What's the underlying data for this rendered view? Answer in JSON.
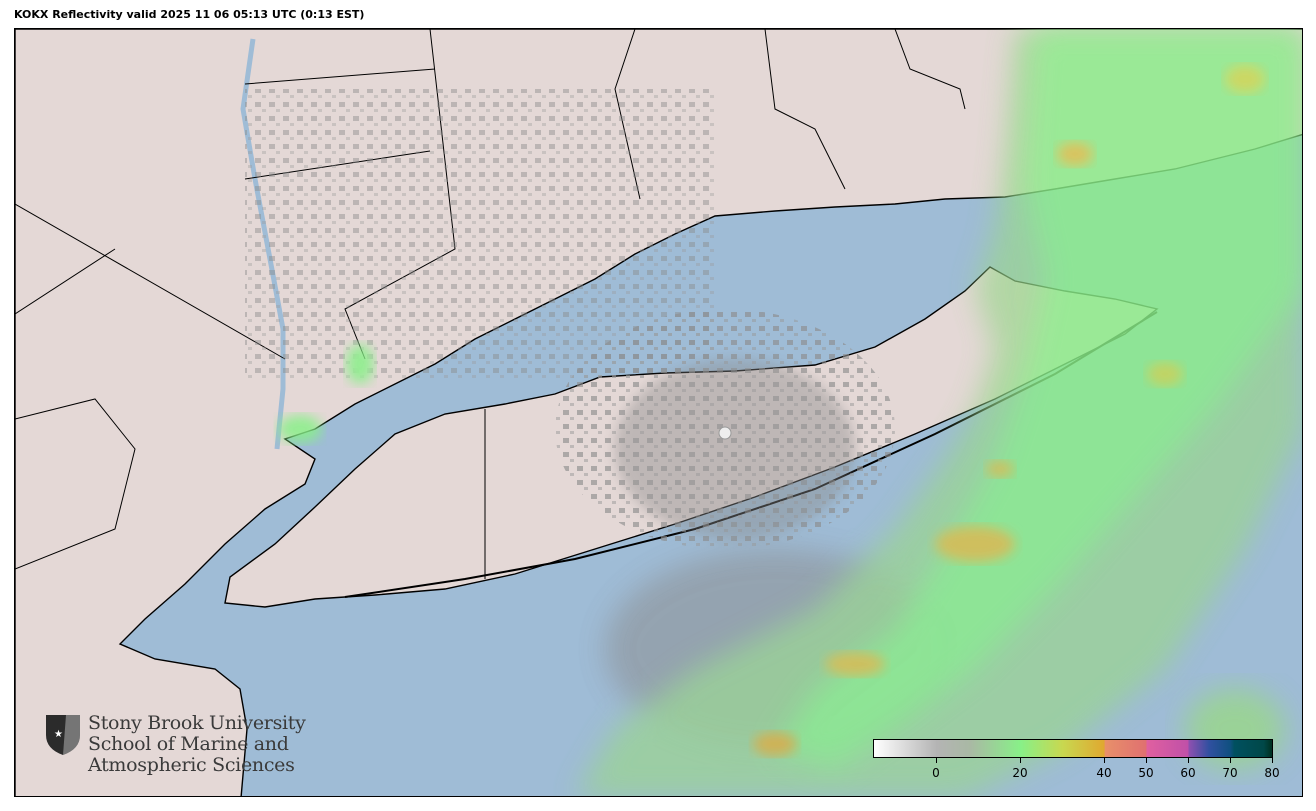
{
  "title": "KOKX Reflectivity valid 2025 11 06 05:13 UTC (0:13 EST)",
  "logo": {
    "line1": "Stony Brook University",
    "line2": "School of Marine and",
    "line3": "Atmospheric Sciences"
  },
  "colorbar": {
    "min": -15,
    "max": 80,
    "units_hint": "dBZ",
    "ticks": [
      "0",
      "20",
      "40",
      "50",
      "60",
      "70",
      "80"
    ],
    "tick_values": [
      0,
      20,
      40,
      50,
      60,
      70,
      80
    ],
    "stops": [
      {
        "value": -15,
        "color": "#ffffff"
      },
      {
        "value": 0,
        "color": "#b4b4b4"
      },
      {
        "value": 8,
        "color": "#a9b9a4"
      },
      {
        "value": 20,
        "color": "#88f088"
      },
      {
        "value": 30,
        "color": "#c8d850"
      },
      {
        "value": 40,
        "color": "#e0a830"
      },
      {
        "value": 40.1,
        "color": "#e8906a"
      },
      {
        "value": 50,
        "color": "#e07070"
      },
      {
        "value": 50.1,
        "color": "#e060a0"
      },
      {
        "value": 60,
        "color": "#c050a8"
      },
      {
        "value": 60.1,
        "color": "#9050b0"
      },
      {
        "value": 65,
        "color": "#3050a0"
      },
      {
        "value": 70,
        "color": "#105080"
      },
      {
        "value": 71,
        "color": "#005060"
      },
      {
        "value": 78,
        "color": "#004848"
      },
      {
        "value": 80,
        "color": "#003020"
      }
    ]
  },
  "colors": {
    "water": "#9fbcd6",
    "land": "#e4d8d6",
    "echo_light": "#88f088",
    "echo_gray": "#8a8a8a",
    "echo_strong": "#d8b040"
  }
}
